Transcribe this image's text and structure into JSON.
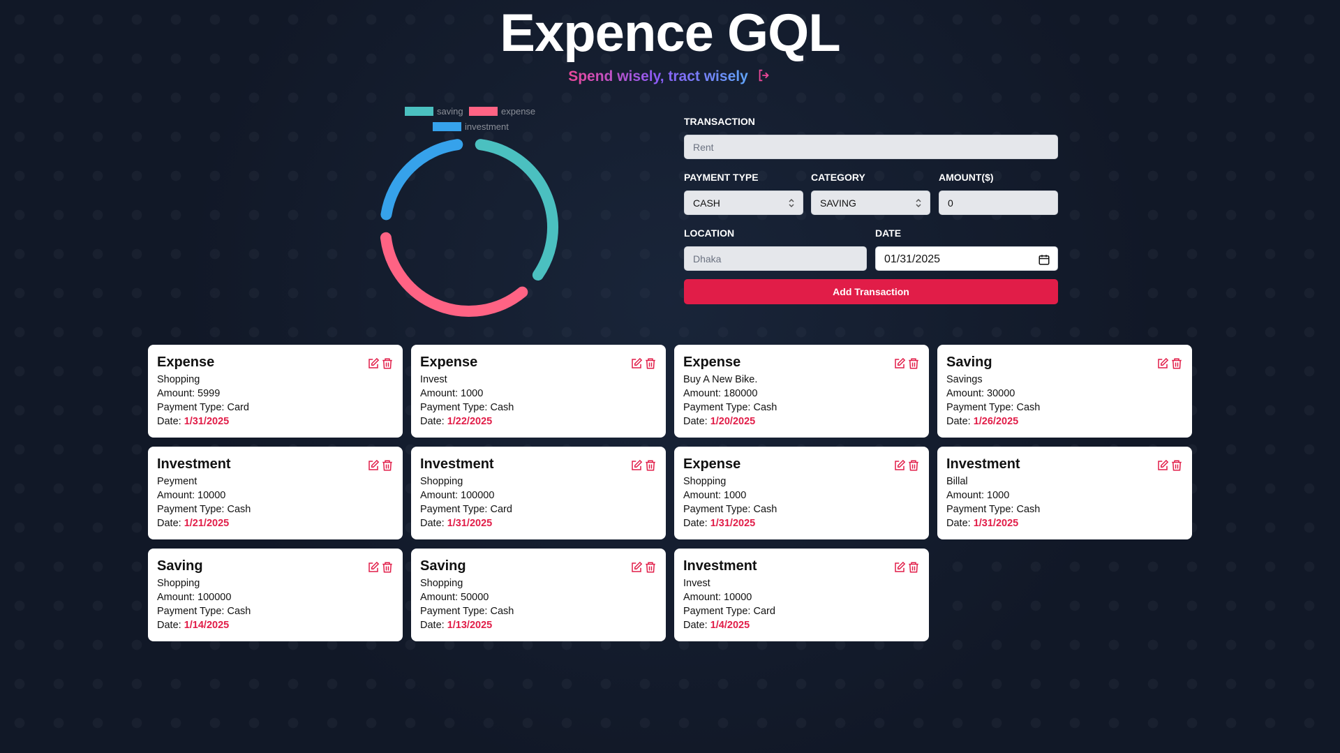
{
  "header": {
    "title": "Expence GQL",
    "subtitle": "Spend wisely, tract wisely"
  },
  "chart_data": {
    "type": "doughnut",
    "categories": [
      "saving",
      "expense",
      "investment"
    ],
    "values": [
      180000,
      187999,
      121000
    ],
    "colors": [
      "#4bc0c0",
      "#ff6384",
      "#36a2eb"
    ]
  },
  "form": {
    "transaction_label": "TRANSACTION",
    "transaction_placeholder": "Rent",
    "payment_type_label": "PAYMENT TYPE",
    "payment_type_value": "CASH",
    "category_label": "CATEGORY",
    "category_value": "SAVING",
    "amount_label": "AMOUNT($)",
    "amount_value": "0",
    "location_label": "LOCATION",
    "location_placeholder": "Dhaka",
    "date_label": "DATE",
    "date_value": "01/31/2025",
    "button": "Add Transaction"
  },
  "card_labels": {
    "amount": "Amount:",
    "payment": "Payment Type:",
    "date": "Date:"
  },
  "cards": [
    {
      "title": "Expense",
      "description": "Shopping",
      "amount": 5999,
      "payment": "Card",
      "date": "1/31/2025"
    },
    {
      "title": "Expense",
      "description": "Invest",
      "amount": 1000,
      "payment": "Cash",
      "date": "1/22/2025"
    },
    {
      "title": "Expense",
      "description": "Buy A New Bike.",
      "amount": 180000,
      "payment": "Cash",
      "date": "1/20/2025"
    },
    {
      "title": "Saving",
      "description": "Savings",
      "amount": 30000,
      "payment": "Cash",
      "date": "1/26/2025"
    },
    {
      "title": "Investment",
      "description": "Peyment",
      "amount": 10000,
      "payment": "Cash",
      "date": "1/21/2025"
    },
    {
      "title": "Investment",
      "description": "Shopping",
      "amount": 100000,
      "payment": "Card",
      "date": "1/31/2025"
    },
    {
      "title": "Expense",
      "description": "Shopping",
      "amount": 1000,
      "payment": "Cash",
      "date": "1/31/2025"
    },
    {
      "title": "Investment",
      "description": "Billal",
      "amount": 1000,
      "payment": "Cash",
      "date": "1/31/2025"
    },
    {
      "title": "Saving",
      "description": "Shopping",
      "amount": 100000,
      "payment": "Cash",
      "date": "1/14/2025"
    },
    {
      "title": "Saving",
      "description": "Shopping",
      "amount": 50000,
      "payment": "Cash",
      "date": "1/13/2025"
    },
    {
      "title": "Investment",
      "description": "Invest",
      "amount": 10000,
      "payment": "Card",
      "date": "1/4/2025"
    }
  ]
}
